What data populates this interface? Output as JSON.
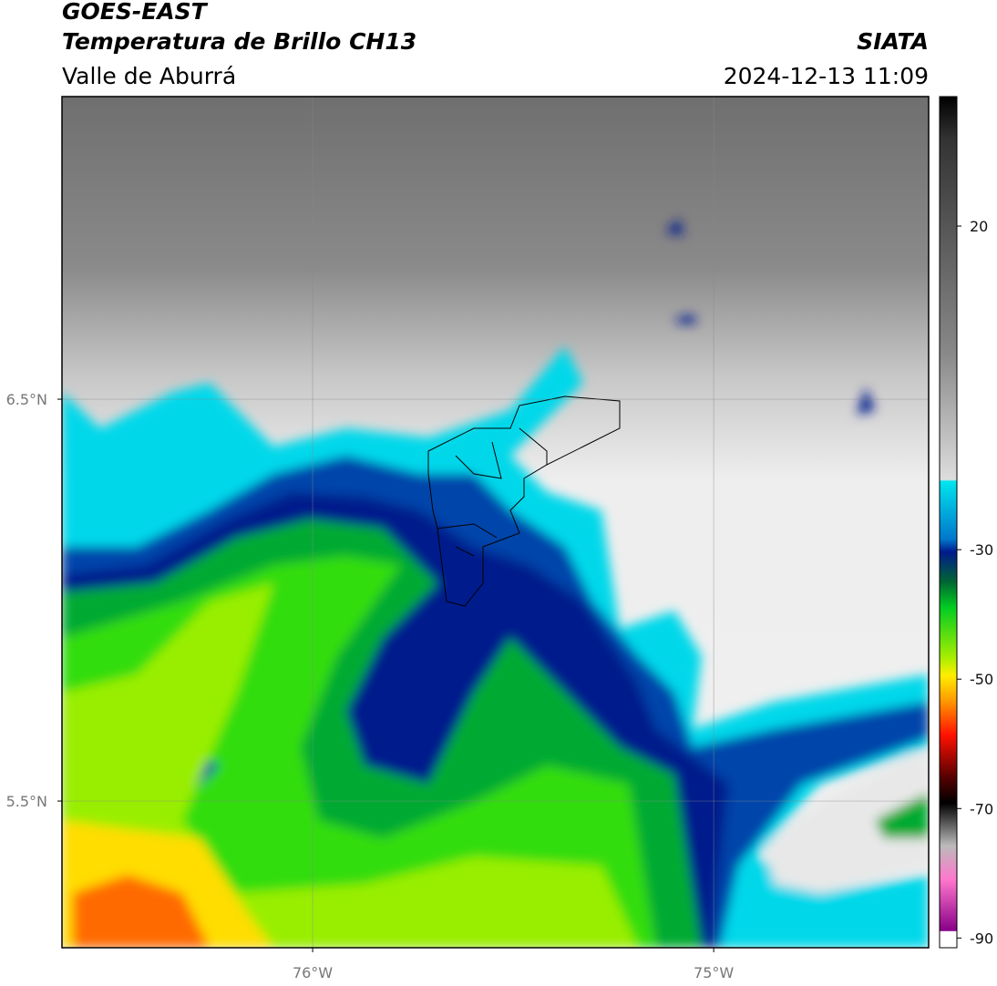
{
  "header": {
    "title": "GOES-EAST",
    "subtitle": "Temperatura de Brillo CH13",
    "region": "Valle de Aburrá",
    "source": "SIATA",
    "datetime": "2024-12-13 11:09"
  },
  "map": {
    "xlim": [
      -76.625,
      -74.464
    ],
    "ylim": [
      5.135,
      7.253
    ],
    "xticks": [
      {
        "value": -76,
        "label": "76°W"
      },
      {
        "value": -75,
        "label": "75°W"
      }
    ],
    "yticks": [
      {
        "value": 6.5,
        "label": "6.5°N"
      },
      {
        "value": 5.5,
        "label": "5.5°N"
      }
    ],
    "grid": true
  },
  "colorbar": {
    "lim": [
      -91.5,
      40
    ],
    "ticks": [
      20,
      -30,
      -50,
      -70,
      -90
    ]
  }
}
